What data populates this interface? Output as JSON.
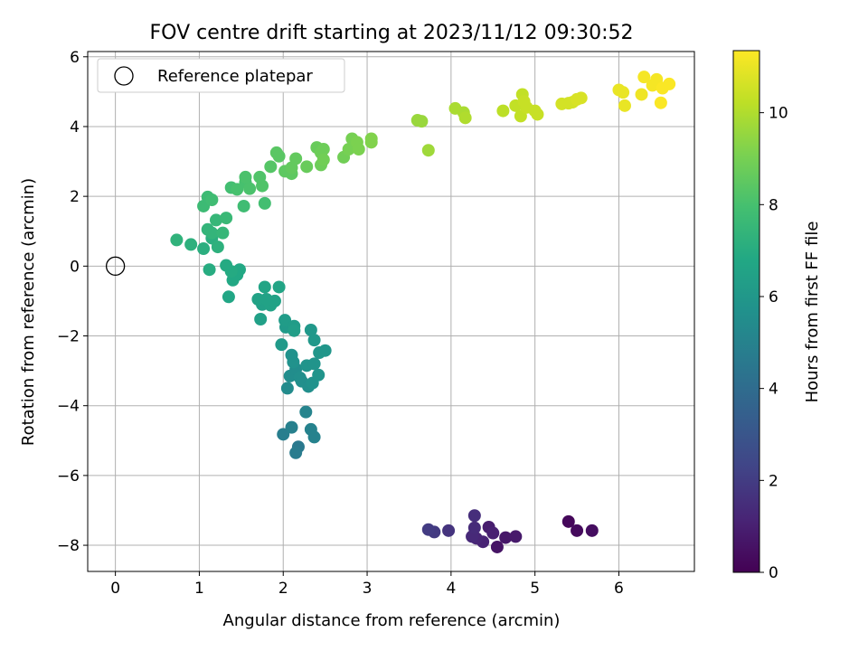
{
  "chart_data": {
    "type": "scatter",
    "title": "FOV centre drift starting at 2023/11/12 09:30:52",
    "xlabel": "Angular distance from reference (arcmin)",
    "ylabel": "Rotation from reference (arcmin)",
    "xlim": [
      -0.33,
      6.9
    ],
    "ylim": [
      -8.75,
      6.15
    ],
    "xticks": [
      0,
      1,
      2,
      3,
      4,
      5,
      6
    ],
    "yticks": [
      -8,
      -6,
      -4,
      -2,
      0,
      2,
      4,
      6
    ],
    "grid": true,
    "legend": {
      "position": "top-left",
      "entries": [
        "Reference platepar"
      ]
    },
    "reference_point": {
      "x": 0,
      "y": 0,
      "label": "Reference platepar"
    },
    "colorbar": {
      "label": "Hours from first FF file",
      "colormap": "viridis",
      "range": [
        0,
        11.35
      ],
      "ticks": [
        0,
        2,
        4,
        6,
        8,
        10
      ]
    },
    "points": [
      {
        "x": 5.4,
        "y": -7.32,
        "c": 0.2
      },
      {
        "x": 5.5,
        "y": -7.58,
        "c": 0.3
      },
      {
        "x": 5.68,
        "y": -7.58,
        "c": 0.4
      },
      {
        "x": 4.55,
        "y": -8.05,
        "c": 0.6
      },
      {
        "x": 4.65,
        "y": -7.78,
        "c": 0.7
      },
      {
        "x": 4.77,
        "y": -7.75,
        "c": 0.8
      },
      {
        "x": 4.45,
        "y": -7.48,
        "c": 0.9
      },
      {
        "x": 4.5,
        "y": -7.65,
        "c": 1.0
      },
      {
        "x": 4.38,
        "y": -7.9,
        "c": 1.1
      },
      {
        "x": 4.3,
        "y": -7.8,
        "c": 1.2
      },
      {
        "x": 4.25,
        "y": -7.75,
        "c": 1.3
      },
      {
        "x": 4.28,
        "y": -7.5,
        "c": 1.4
      },
      {
        "x": 4.28,
        "y": -7.15,
        "c": 1.5
      },
      {
        "x": 3.97,
        "y": -7.58,
        "c": 1.7
      },
      {
        "x": 3.8,
        "y": -7.62,
        "c": 1.9
      },
      {
        "x": 3.73,
        "y": -7.55,
        "c": 2.0
      },
      {
        "x": 2.18,
        "y": -5.18,
        "c": 4.6
      },
      {
        "x": 2.15,
        "y": -5.35,
        "c": 4.7
      },
      {
        "x": 2.0,
        "y": -4.82,
        "c": 4.8
      },
      {
        "x": 2.1,
        "y": -4.62,
        "c": 4.9
      },
      {
        "x": 2.33,
        "y": -4.68,
        "c": 5.0
      },
      {
        "x": 2.37,
        "y": -4.9,
        "c": 5.0
      },
      {
        "x": 2.27,
        "y": -4.18,
        "c": 5.1
      },
      {
        "x": 2.05,
        "y": -3.5,
        "c": 5.4
      },
      {
        "x": 2.08,
        "y": -3.15,
        "c": 5.5
      },
      {
        "x": 2.15,
        "y": -2.95,
        "c": 5.5
      },
      {
        "x": 2.2,
        "y": -3.2,
        "c": 5.6
      },
      {
        "x": 2.22,
        "y": -3.3,
        "c": 5.6
      },
      {
        "x": 2.3,
        "y": -3.45,
        "c": 5.6
      },
      {
        "x": 2.35,
        "y": -3.35,
        "c": 5.7
      },
      {
        "x": 2.12,
        "y": -2.75,
        "c": 5.7
      },
      {
        "x": 2.1,
        "y": -2.55,
        "c": 5.7
      },
      {
        "x": 2.28,
        "y": -2.85,
        "c": 5.8
      },
      {
        "x": 2.37,
        "y": -2.8,
        "c": 5.8
      },
      {
        "x": 2.42,
        "y": -3.12,
        "c": 5.8
      },
      {
        "x": 2.43,
        "y": -2.48,
        "c": 5.9
      },
      {
        "x": 2.5,
        "y": -2.42,
        "c": 5.9
      },
      {
        "x": 2.37,
        "y": -2.12,
        "c": 6.0
      },
      {
        "x": 2.33,
        "y": -1.83,
        "c": 6.0
      },
      {
        "x": 1.98,
        "y": -2.25,
        "c": 6.1
      },
      {
        "x": 2.03,
        "y": -1.75,
        "c": 6.1
      },
      {
        "x": 2.02,
        "y": -1.55,
        "c": 6.2
      },
      {
        "x": 2.13,
        "y": -1.72,
        "c": 6.2
      },
      {
        "x": 2.13,
        "y": -1.85,
        "c": 6.3
      },
      {
        "x": 1.73,
        "y": -1.52,
        "c": 6.4
      },
      {
        "x": 1.75,
        "y": -1.1,
        "c": 6.4
      },
      {
        "x": 1.85,
        "y": -1.12,
        "c": 6.5
      },
      {
        "x": 1.9,
        "y": -1.0,
        "c": 6.5
      },
      {
        "x": 1.7,
        "y": -0.95,
        "c": 6.5
      },
      {
        "x": 1.8,
        "y": -0.95,
        "c": 6.5
      },
      {
        "x": 1.78,
        "y": -0.6,
        "c": 6.6
      },
      {
        "x": 1.95,
        "y": -0.6,
        "c": 6.6
      },
      {
        "x": 1.35,
        "y": -0.88,
        "c": 6.7
      },
      {
        "x": 1.4,
        "y": -0.4,
        "c": 6.8
      },
      {
        "x": 1.45,
        "y": -0.25,
        "c": 6.8
      },
      {
        "x": 1.48,
        "y": -0.1,
        "c": 6.8
      },
      {
        "x": 1.38,
        "y": -0.15,
        "c": 6.9
      },
      {
        "x": 1.32,
        "y": 0.02,
        "c": 6.9
      },
      {
        "x": 1.12,
        "y": -0.1,
        "c": 7.0
      },
      {
        "x": 1.15,
        "y": 0.8,
        "c": 7.1
      },
      {
        "x": 1.05,
        "y": 0.5,
        "c": 7.1
      },
      {
        "x": 1.22,
        "y": 0.55,
        "c": 7.2
      },
      {
        "x": 0.9,
        "y": 0.62,
        "c": 7.2
      },
      {
        "x": 0.73,
        "y": 0.75,
        "c": 7.3
      },
      {
        "x": 1.1,
        "y": 1.05,
        "c": 7.4
      },
      {
        "x": 1.15,
        "y": 0.95,
        "c": 7.4
      },
      {
        "x": 1.28,
        "y": 0.95,
        "c": 7.5
      },
      {
        "x": 1.2,
        "y": 1.32,
        "c": 7.5
      },
      {
        "x": 1.32,
        "y": 1.38,
        "c": 7.6
      },
      {
        "x": 1.05,
        "y": 1.72,
        "c": 7.7
      },
      {
        "x": 1.1,
        "y": 1.98,
        "c": 7.7
      },
      {
        "x": 1.15,
        "y": 1.9,
        "c": 7.8
      },
      {
        "x": 1.53,
        "y": 1.72,
        "c": 7.8
      },
      {
        "x": 1.78,
        "y": 1.8,
        "c": 7.9
      },
      {
        "x": 1.38,
        "y": 2.25,
        "c": 7.9
      },
      {
        "x": 1.45,
        "y": 2.2,
        "c": 8.0
      },
      {
        "x": 1.55,
        "y": 2.4,
        "c": 8.0
      },
      {
        "x": 1.6,
        "y": 2.22,
        "c": 8.1
      },
      {
        "x": 1.55,
        "y": 2.55,
        "c": 8.1
      },
      {
        "x": 1.75,
        "y": 2.3,
        "c": 8.2
      },
      {
        "x": 1.72,
        "y": 2.55,
        "c": 8.2
      },
      {
        "x": 1.85,
        "y": 2.85,
        "c": 8.3
      },
      {
        "x": 1.92,
        "y": 3.25,
        "c": 8.4
      },
      {
        "x": 1.95,
        "y": 3.15,
        "c": 8.4
      },
      {
        "x": 2.02,
        "y": 2.72,
        "c": 8.5
      },
      {
        "x": 2.1,
        "y": 2.65,
        "c": 8.5
      },
      {
        "x": 2.1,
        "y": 2.82,
        "c": 8.6
      },
      {
        "x": 2.15,
        "y": 3.08,
        "c": 8.6
      },
      {
        "x": 2.28,
        "y": 2.85,
        "c": 8.7
      },
      {
        "x": 2.4,
        "y": 3.4,
        "c": 8.7
      },
      {
        "x": 2.45,
        "y": 3.25,
        "c": 8.8
      },
      {
        "x": 2.48,
        "y": 3.35,
        "c": 8.8
      },
      {
        "x": 2.45,
        "y": 2.9,
        "c": 8.8
      },
      {
        "x": 2.48,
        "y": 3.05,
        "c": 8.9
      },
      {
        "x": 2.72,
        "y": 3.12,
        "c": 8.9
      },
      {
        "x": 2.78,
        "y": 3.35,
        "c": 9.0
      },
      {
        "x": 2.82,
        "y": 3.65,
        "c": 9.0
      },
      {
        "x": 2.88,
        "y": 3.55,
        "c": 9.1
      },
      {
        "x": 2.9,
        "y": 3.35,
        "c": 9.1
      },
      {
        "x": 3.05,
        "y": 3.55,
        "c": 9.2
      },
      {
        "x": 3.05,
        "y": 3.65,
        "c": 9.2
      },
      {
        "x": 3.6,
        "y": 4.18,
        "c": 9.6
      },
      {
        "x": 3.65,
        "y": 4.15,
        "c": 9.6
      },
      {
        "x": 3.73,
        "y": 3.32,
        "c": 9.7
      },
      {
        "x": 4.05,
        "y": 4.52,
        "c": 9.9
      },
      {
        "x": 4.15,
        "y": 4.4,
        "c": 9.9
      },
      {
        "x": 4.17,
        "y": 4.25,
        "c": 10.0
      },
      {
        "x": 4.62,
        "y": 4.45,
        "c": 10.2
      },
      {
        "x": 4.77,
        "y": 4.6,
        "c": 10.3
      },
      {
        "x": 4.83,
        "y": 4.3,
        "c": 10.3
      },
      {
        "x": 4.85,
        "y": 4.92,
        "c": 10.3
      },
      {
        "x": 4.87,
        "y": 4.72,
        "c": 10.4
      },
      {
        "x": 4.9,
        "y": 4.55,
        "c": 10.4
      },
      {
        "x": 5.0,
        "y": 4.45,
        "c": 10.4
      },
      {
        "x": 5.03,
        "y": 4.35,
        "c": 10.4
      },
      {
        "x": 5.32,
        "y": 4.65,
        "c": 10.6
      },
      {
        "x": 5.4,
        "y": 4.67,
        "c": 10.6
      },
      {
        "x": 5.45,
        "y": 4.7,
        "c": 10.6
      },
      {
        "x": 5.5,
        "y": 4.78,
        "c": 10.7
      },
      {
        "x": 5.55,
        "y": 4.82,
        "c": 10.7
      },
      {
        "x": 6.0,
        "y": 5.05,
        "c": 11.0
      },
      {
        "x": 6.05,
        "y": 4.98,
        "c": 11.0
      },
      {
        "x": 6.07,
        "y": 4.6,
        "c": 11.0
      },
      {
        "x": 6.27,
        "y": 4.92,
        "c": 11.1
      },
      {
        "x": 6.3,
        "y": 5.42,
        "c": 11.2
      },
      {
        "x": 6.4,
        "y": 5.18,
        "c": 11.2
      },
      {
        "x": 6.45,
        "y": 5.35,
        "c": 11.2
      },
      {
        "x": 6.5,
        "y": 4.68,
        "c": 11.3
      },
      {
        "x": 6.52,
        "y": 5.1,
        "c": 11.3
      },
      {
        "x": 6.6,
        "y": 5.22,
        "c": 11.3
      }
    ]
  }
}
